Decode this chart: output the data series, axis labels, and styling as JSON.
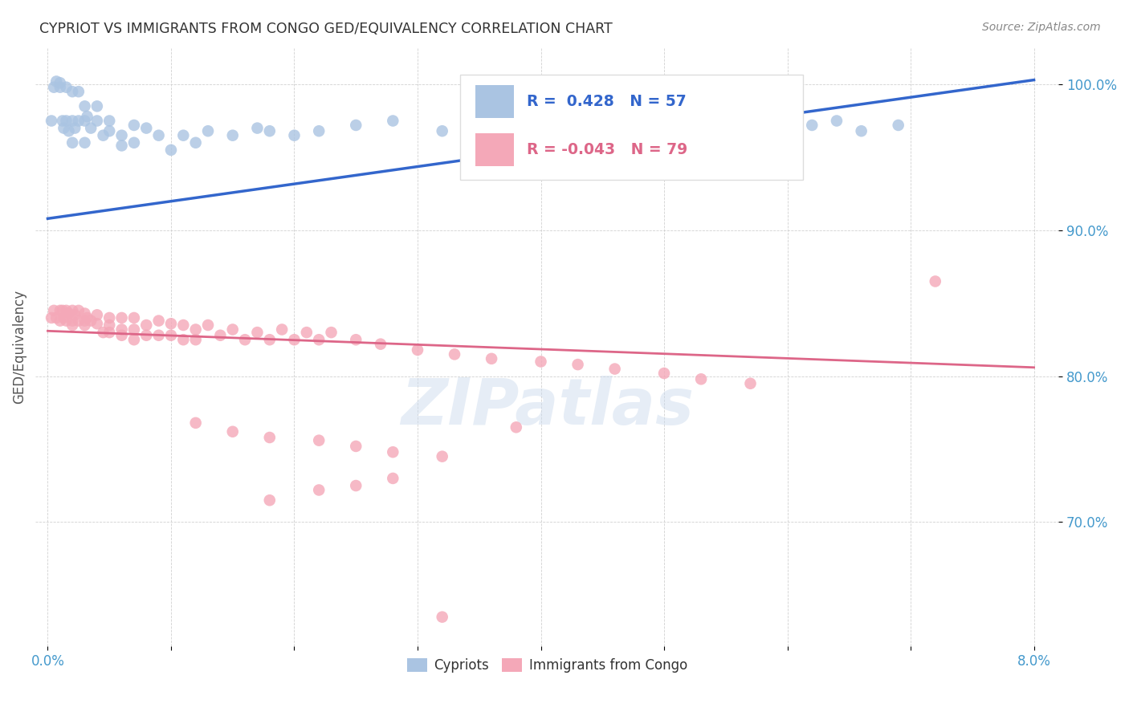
{
  "title": "CYPRIOT VS IMMIGRANTS FROM CONGO GED/EQUIVALENCY CORRELATION CHART",
  "source": "Source: ZipAtlas.com",
  "ylabel": "GED/Equivalency",
  "xlim": [
    -0.001,
    0.082
  ],
  "ylim": [
    0.615,
    1.025
  ],
  "xticks": [
    0.0,
    0.01,
    0.02,
    0.03,
    0.04,
    0.05,
    0.06,
    0.07,
    0.08
  ],
  "xticklabels": [
    "0.0%",
    "",
    "",
    "",
    "",
    "",
    "",
    "",
    "8.0%"
  ],
  "yticks": [
    0.7,
    0.8,
    0.9,
    1.0
  ],
  "yticklabels": [
    "70.0%",
    "80.0%",
    "90.0%",
    "100.0%"
  ],
  "legend_r_cypriot": "R =  0.428",
  "legend_n_cypriot": "N = 57",
  "legend_r_congo": "R = -0.043",
  "legend_n_congo": "N = 79",
  "cypriot_color": "#aac4e2",
  "congo_color": "#f4a8b8",
  "trend_cypriot_color": "#3366cc",
  "trend_congo_color": "#dd6688",
  "label_color": "#4499cc",
  "background_color": "#ffffff",
  "watermark": "ZIPatlas",
  "cypriot_trend_x0": 0.0,
  "cypriot_trend_y0": 0.908,
  "cypriot_trend_x1": 0.08,
  "cypriot_trend_y1": 1.003,
  "congo_trend_x0": 0.0,
  "congo_trend_y0": 0.831,
  "congo_trend_x1": 0.08,
  "congo_trend_y1": 0.806,
  "cypriot_x": [
    0.0003,
    0.0005,
    0.0007,
    0.001,
    0.001,
    0.0012,
    0.0013,
    0.0015,
    0.0015,
    0.0017,
    0.002,
    0.002,
    0.002,
    0.0022,
    0.0025,
    0.0025,
    0.003,
    0.003,
    0.003,
    0.0032,
    0.0035,
    0.004,
    0.004,
    0.0045,
    0.005,
    0.005,
    0.006,
    0.006,
    0.007,
    0.007,
    0.008,
    0.009,
    0.01,
    0.011,
    0.012,
    0.013,
    0.015,
    0.017,
    0.018,
    0.02,
    0.022,
    0.025,
    0.028,
    0.032,
    0.035,
    0.038,
    0.04,
    0.043,
    0.046,
    0.05,
    0.052,
    0.055,
    0.058,
    0.062,
    0.064,
    0.066,
    0.069
  ],
  "cypriot_y": [
    0.975,
    0.998,
    1.002,
    0.998,
    1.001,
    0.975,
    0.97,
    0.998,
    0.975,
    0.968,
    0.995,
    0.975,
    0.96,
    0.97,
    0.995,
    0.975,
    0.985,
    0.975,
    0.96,
    0.978,
    0.97,
    0.985,
    0.975,
    0.965,
    0.975,
    0.968,
    0.965,
    0.958,
    0.972,
    0.96,
    0.97,
    0.965,
    0.955,
    0.965,
    0.96,
    0.968,
    0.965,
    0.97,
    0.968,
    0.965,
    0.968,
    0.972,
    0.975,
    0.968,
    0.972,
    0.975,
    0.968,
    0.972,
    0.975,
    0.968,
    0.972,
    0.975,
    0.968,
    0.972,
    0.975,
    0.968,
    0.972
  ],
  "congo_x": [
    0.0003,
    0.0005,
    0.0007,
    0.001,
    0.001,
    0.0012,
    0.0013,
    0.0015,
    0.0015,
    0.0017,
    0.002,
    0.002,
    0.002,
    0.0022,
    0.0025,
    0.0025,
    0.003,
    0.003,
    0.003,
    0.0032,
    0.0035,
    0.004,
    0.004,
    0.0045,
    0.005,
    0.005,
    0.005,
    0.006,
    0.006,
    0.006,
    0.007,
    0.007,
    0.007,
    0.008,
    0.008,
    0.009,
    0.009,
    0.01,
    0.01,
    0.011,
    0.011,
    0.012,
    0.012,
    0.013,
    0.014,
    0.015,
    0.016,
    0.017,
    0.018,
    0.019,
    0.02,
    0.021,
    0.022,
    0.023,
    0.025,
    0.027,
    0.03,
    0.033,
    0.036,
    0.04,
    0.043,
    0.046,
    0.05,
    0.053,
    0.057,
    0.038,
    0.012,
    0.015,
    0.018,
    0.022,
    0.025,
    0.028,
    0.032,
    0.072,
    0.018,
    0.022,
    0.025,
    0.028,
    0.032
  ],
  "congo_y": [
    0.84,
    0.845,
    0.84,
    0.845,
    0.838,
    0.845,
    0.84,
    0.845,
    0.838,
    0.843,
    0.845,
    0.838,
    0.835,
    0.842,
    0.845,
    0.838,
    0.843,
    0.838,
    0.835,
    0.84,
    0.838,
    0.842,
    0.836,
    0.83,
    0.84,
    0.835,
    0.83,
    0.84,
    0.832,
    0.828,
    0.84,
    0.832,
    0.825,
    0.835,
    0.828,
    0.838,
    0.828,
    0.836,
    0.828,
    0.835,
    0.825,
    0.832,
    0.825,
    0.835,
    0.828,
    0.832,
    0.825,
    0.83,
    0.825,
    0.832,
    0.825,
    0.83,
    0.825,
    0.83,
    0.825,
    0.822,
    0.818,
    0.815,
    0.812,
    0.81,
    0.808,
    0.805,
    0.802,
    0.798,
    0.795,
    0.765,
    0.768,
    0.762,
    0.758,
    0.756,
    0.752,
    0.748,
    0.745,
    0.865,
    0.715,
    0.722,
    0.725,
    0.73,
    0.635
  ]
}
